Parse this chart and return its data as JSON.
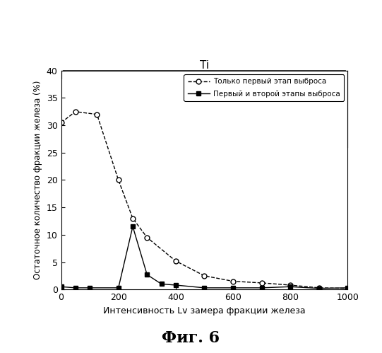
{
  "series1_label": "Только первый этап выброса",
  "series2_label": "Первый и второй этапы выброса",
  "series1_x": [
    0,
    50,
    125,
    200,
    250,
    300,
    400,
    500,
    600,
    700,
    800,
    900,
    1000
  ],
  "series1_y": [
    30.5,
    32.5,
    32.0,
    20.0,
    13.0,
    9.5,
    5.2,
    2.5,
    1.5,
    1.2,
    0.8,
    0.3,
    0.2
  ],
  "series2_x": [
    0,
    50,
    100,
    200,
    250,
    300,
    350,
    400,
    500,
    600,
    700,
    800,
    900,
    1000
  ],
  "series2_y": [
    0.5,
    0.3,
    0.3,
    0.3,
    11.5,
    2.7,
    1.0,
    0.8,
    0.3,
    0.3,
    0.3,
    0.5,
    0.2,
    0.3
  ],
  "xlabel": "Интенсивность Lv замера фракции железа",
  "ylabel": "Остаточное количество фракции железа (%)",
  "caption": "Фиг. 6",
  "ti_label": "Ti",
  "xlim": [
    0,
    1000
  ],
  "ylim": [
    0,
    40
  ],
  "xticks": [
    0,
    200,
    400,
    600,
    800,
    1000
  ],
  "yticks": [
    0,
    5,
    10,
    15,
    20,
    25,
    30,
    35,
    40
  ],
  "background_color": "#ffffff"
}
